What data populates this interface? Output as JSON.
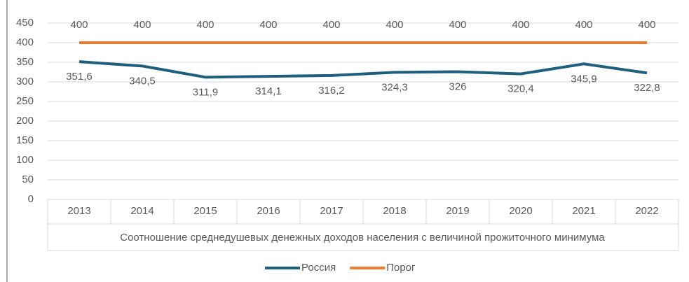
{
  "chart_data": {
    "type": "line",
    "categories": [
      "2013",
      "2014",
      "2015",
      "2016",
      "2017",
      "2018",
      "2019",
      "2020",
      "2021",
      "2022"
    ],
    "xlabel": "Соотношение среднедушевых денежных доходов населения с величиной прожиточного минимума",
    "series": [
      {
        "name": "Россия",
        "color": "#1f5f7e",
        "values": [
          351.6,
          340.5,
          311.9,
          314.1,
          316.2,
          324.3,
          326,
          320.4,
          345.9,
          322.8
        ],
        "value_labels": [
          "351,6",
          "340,5",
          "311,9",
          "314,1",
          "316,2",
          "324,3",
          "326",
          "320,4",
          "345,9",
          "322,8"
        ]
      },
      {
        "name": "Порог",
        "color": "#ee7d31",
        "values": [
          400,
          400,
          400,
          400,
          400,
          400,
          400,
          400,
          400,
          400
        ],
        "value_labels": [
          "400",
          "400",
          "400",
          "400",
          "400",
          "400",
          "400",
          "400",
          "400",
          "400"
        ]
      }
    ],
    "ylim": [
      0,
      450
    ],
    "yticks": [
      0,
      50,
      100,
      150,
      200,
      250,
      300,
      350,
      400,
      450
    ],
    "grid": true,
    "legend": "bottom"
  }
}
